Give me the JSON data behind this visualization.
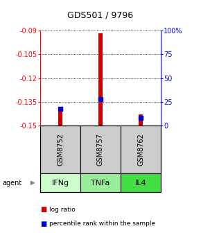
{
  "title": "GDS501 / 9796",
  "samples": [
    "GSM8752",
    "GSM8757",
    "GSM8762"
  ],
  "agents": [
    "IFNg",
    "TNFa",
    "IL4"
  ],
  "agent_colors": [
    "#ccffcc",
    "#99ee99",
    "#44dd44"
  ],
  "log_ratios": [
    -0.1385,
    -0.092,
    -0.143
  ],
  "percentile_ranks": [
    0.18,
    0.28,
    0.08
  ],
  "y_min": -0.15,
  "y_max": -0.09,
  "y_ticks": [
    -0.09,
    -0.105,
    -0.12,
    -0.135,
    -0.15
  ],
  "y_tick_labels": [
    "-0.09",
    "-0.105",
    "-0.12",
    "-0.135",
    "-0.15"
  ],
  "y2_ticks_pct": [
    0,
    25,
    50,
    75,
    100
  ],
  "y2_tick_labels": [
    "0",
    "25",
    "50",
    "75",
    "100%"
  ],
  "bar_color": "#cc0000",
  "dot_color": "#0000cc",
  "sample_box_color": "#cccccc",
  "title_fontsize": 9,
  "tick_fontsize": 7,
  "sample_fontsize": 7,
  "agent_fontsize": 8,
  "legend_fontsize": 6.5,
  "bar_width": 0.1,
  "dot_size": 18
}
